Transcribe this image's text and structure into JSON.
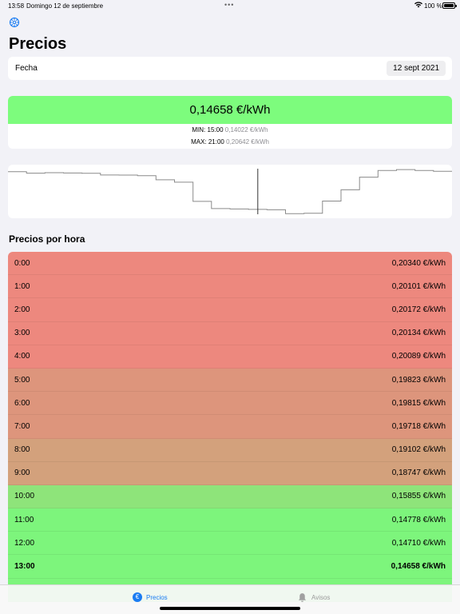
{
  "status_bar": {
    "time": "13:58",
    "date": "Domingo 12 de septiembre",
    "battery": "100 %"
  },
  "header": {
    "title": "Precios",
    "settings_icon": "gear-icon"
  },
  "date_selector": {
    "label": "Fecha",
    "value": "12 sept 2021"
  },
  "current_price": {
    "value": "0,14658 €/kWh",
    "min_label": "MIN:",
    "min_hour": "15:00",
    "min_value": "0,14022 €/kWh",
    "max_label": "MAX:",
    "max_hour": "21:00",
    "max_value": "0,20642 €/kWh",
    "color": "#7dfc7d"
  },
  "chart_data": {
    "type": "line",
    "step": true,
    "x": [
      0,
      1,
      2,
      3,
      4,
      5,
      6,
      7,
      8,
      9,
      10,
      11,
      12,
      13,
      14,
      15,
      16,
      17,
      18,
      19,
      20,
      21,
      22,
      23
    ],
    "values": [
      0.2034,
      0.20101,
      0.20172,
      0.20134,
      0.20089,
      0.19823,
      0.19815,
      0.19718,
      0.19102,
      0.18747,
      0.15855,
      0.14778,
      0.1471,
      0.14658,
      0.146,
      0.14022,
      0.1408,
      0.159,
      0.176,
      0.195,
      0.205,
      0.20642,
      0.205,
      0.2038
    ],
    "current_hour": 13,
    "ylim": [
      0.138,
      0.209
    ],
    "grid": false,
    "line_color": "#8a8a8a",
    "marker_color": "#333333"
  },
  "hourly": {
    "title": "Precios por hora",
    "rows": [
      {
        "hour": "0:00",
        "price": "0,20340 €/kWh",
        "color": "#ed887e"
      },
      {
        "hour": "1:00",
        "price": "0,20101 €/kWh",
        "color": "#ed887e"
      },
      {
        "hour": "2:00",
        "price": "0,20172 €/kWh",
        "color": "#ed887e"
      },
      {
        "hour": "3:00",
        "price": "0,20134 €/kWh",
        "color": "#ed887e"
      },
      {
        "hour": "4:00",
        "price": "0,20089 €/kWh",
        "color": "#ed887e"
      },
      {
        "hour": "5:00",
        "price": "0,19823 €/kWh",
        "color": "#dd957c"
      },
      {
        "hour": "6:00",
        "price": "0,19815 €/kWh",
        "color": "#dd957c"
      },
      {
        "hour": "7:00",
        "price": "0,19718 €/kWh",
        "color": "#dd957c"
      },
      {
        "hour": "8:00",
        "price": "0,19102 €/kWh",
        "color": "#d3a17c"
      },
      {
        "hour": "9:00",
        "price": "0,18747 €/kWh",
        "color": "#d3a17c"
      },
      {
        "hour": "10:00",
        "price": "0,15855 €/kWh",
        "color": "#8ee47a"
      },
      {
        "hour": "11:00",
        "price": "0,14778 €/kWh",
        "color": "#7df57c"
      },
      {
        "hour": "12:00",
        "price": "0,14710 €/kWh",
        "color": "#7df57c"
      },
      {
        "hour": "13:00",
        "price": "0,14658 €/kWh",
        "color": "#7df57c",
        "current": true
      },
      {
        "hour": "",
        "price": "",
        "color": "#7df57c"
      }
    ]
  },
  "tabs": {
    "precios": "Precios",
    "avisos": "Avisos",
    "active_color": "#1a7cf2"
  }
}
